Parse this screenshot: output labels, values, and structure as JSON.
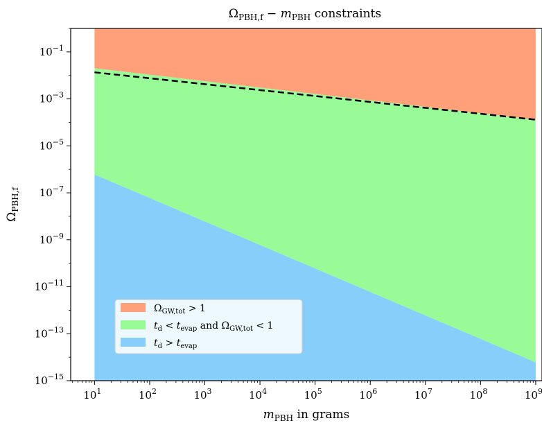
{
  "chart_data": {
    "type": "area",
    "title": {
      "prefix": "Ω",
      "prefix_sub": "PBH,f",
      "mid": " − ",
      "var": "m",
      "var_sub": "PBH",
      "suffix": " constraints"
    },
    "xlabel": {
      "var": "m",
      "var_sub": "PBH",
      "suffix": " in grams"
    },
    "ylabel": {
      "var": "Ω",
      "var_sub": "PBH,f"
    },
    "x_scale": "log",
    "y_scale": "log",
    "xlim": [
      3.7,
      1300000000.0
    ],
    "ylim": [
      1e-15,
      1
    ],
    "x_ticks": [
      {
        "value": 10,
        "base": "10",
        "exp": "1"
      },
      {
        "value": 100,
        "base": "10",
        "exp": "2"
      },
      {
        "value": 1000,
        "base": "10",
        "exp": "3"
      },
      {
        "value": 10000,
        "base": "10",
        "exp": "4"
      },
      {
        "value": 100000,
        "base": "10",
        "exp": "5"
      },
      {
        "value": 1000000,
        "base": "10",
        "exp": "6"
      },
      {
        "value": 10000000,
        "base": "10",
        "exp": "7"
      },
      {
        "value": 100000000,
        "base": "10",
        "exp": "8"
      },
      {
        "value": 1000000000,
        "base": "10",
        "exp": "9"
      }
    ],
    "y_ticks": [
      {
        "value": 0.1,
        "base": "10",
        "exp": "−1"
      },
      {
        "value": 0.001,
        "base": "10",
        "exp": "−3"
      },
      {
        "value": 1e-05,
        "base": "10",
        "exp": "−5"
      },
      {
        "value": 1e-07,
        "base": "10",
        "exp": "−7"
      },
      {
        "value": 1e-09,
        "base": "10",
        "exp": "−9"
      },
      {
        "value": 1e-11,
        "base": "10",
        "exp": "−11"
      },
      {
        "value": 1e-13,
        "base": "10",
        "exp": "−13"
      },
      {
        "value": 1e-15,
        "base": "10",
        "exp": "−15"
      }
    ],
    "regions": [
      {
        "key": "gw",
        "color": "#FFA07A",
        "lower": [
          [
            10,
            0.02
          ],
          [
            1000000000.0,
            0.00013
          ]
        ],
        "upper_to_top": true
      },
      {
        "key": "evap",
        "color": "#98FB98",
        "lower": [
          [
            10,
            6e-07
          ],
          [
            1000000000.0,
            6e-15
          ]
        ],
        "upper": [
          [
            10,
            0.02
          ],
          [
            1000000000.0,
            0.00013
          ]
        ]
      },
      {
        "key": "early",
        "color": "#87CEFA",
        "lower_to_bottom": true,
        "upper": [
          [
            10,
            6e-07
          ],
          [
            1000000000.0,
            6e-15
          ]
        ]
      }
    ],
    "dashed_line": {
      "points": [
        [
          10,
          0.0135
        ],
        [
          1000000000.0,
          0.00013
        ]
      ],
      "color": "#000000"
    },
    "legend": {
      "position": "lower-left",
      "entries": [
        {
          "color": "#FFA07A",
          "var": "Ω",
          "var_sub": "GW,tot",
          "rest": " > 1"
        },
        {
          "color": "#98FB98",
          "var": "t",
          "var_sub": "d",
          "rest": " < ",
          "var2": "t",
          "var2_sub": "evap",
          "rest2": " and Ω",
          "rest2_sub": "GW,tot",
          "rest3": " < 1"
        },
        {
          "color": "#87CEFA",
          "var": "t",
          "var_sub": "d",
          "rest": " > ",
          "var2": "t",
          "var2_sub": "evap"
        }
      ]
    }
  }
}
